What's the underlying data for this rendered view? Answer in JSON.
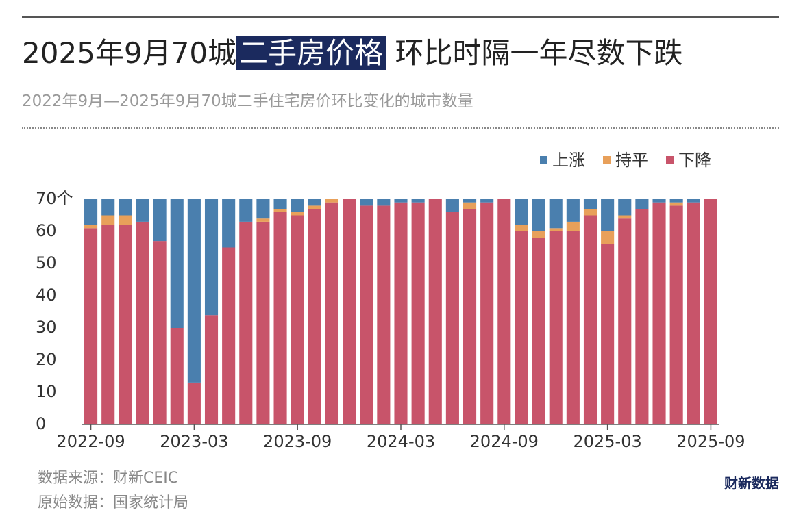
{
  "chart_data": {
    "type": "stacked_bar",
    "title": [
      "2025年9月70城",
      "二手房价格",
      "环比时隔一年尽数下跌"
    ],
    "subtitle": "2022年9月—2025年9月70城二手住宅房价环比变化的城市数量",
    "categories": [
      "2022-09",
      null,
      null,
      null,
      null,
      null,
      "2023-03",
      null,
      null,
      null,
      null,
      null,
      "2023-09",
      null,
      null,
      null,
      null,
      null,
      "2024-03",
      null,
      null,
      null,
      null,
      null,
      "2024-09",
      null,
      null,
      null,
      null,
      null,
      "2025-03",
      null,
      null,
      null,
      null,
      null,
      "2025-09"
    ],
    "series": [
      {
        "name": "上涨",
        "color": "#4a7fae",
        "values": [
          8,
          5,
          5,
          7,
          13,
          40,
          57,
          36,
          15,
          7,
          6,
          3,
          4,
          2,
          0,
          0,
          2,
          2,
          1,
          1,
          0,
          4,
          1,
          1,
          0,
          8,
          10,
          9,
          7,
          3,
          10,
          5,
          3,
          1,
          1,
          1,
          0
        ]
      },
      {
        "name": "持平",
        "color": "#e8a05a",
        "values": [
          1,
          3,
          3,
          0,
          0,
          0,
          0,
          0,
          0,
          0,
          1,
          1,
          1,
          1,
          1,
          0,
          0,
          0,
          0,
          0,
          0,
          0,
          2,
          0,
          0,
          2,
          2,
          1,
          3,
          2,
          4,
          1,
          0,
          0,
          1,
          0,
          0
        ]
      },
      {
        "name": "下降",
        "color": "#c8546a",
        "values": [
          61,
          62,
          62,
          63,
          57,
          30,
          13,
          34,
          55,
          63,
          63,
          66,
          65,
          67,
          69,
          70,
          68,
          68,
          69,
          69,
          70,
          66,
          67,
          69,
          70,
          60,
          58,
          60,
          60,
          65,
          56,
          64,
          67,
          69,
          68,
          69,
          70
        ]
      }
    ],
    "ylim": [
      0,
      70
    ],
    "yticks": [
      0,
      10,
      20,
      30,
      40,
      50,
      60,
      {
        "value": 70,
        "label": "70个"
      }
    ],
    "legend": "top-right",
    "sources": [
      "数据来源：财新CEIC",
      "原始数据：国家统计局"
    ],
    "brand": "财新数据"
  }
}
